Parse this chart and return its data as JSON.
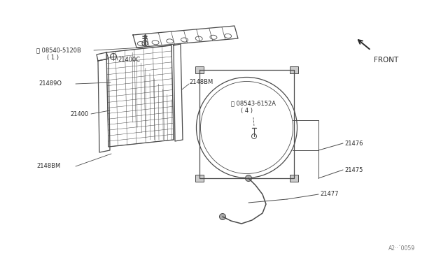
{
  "bg_color": "#ffffff",
  "line_color": "#4a4a4a",
  "text_color": "#2a2a2a",
  "parts": {
    "screw1_label": "Ⓢ 08540-5120B",
    "screw1_sub": "( 1 )",
    "part_21400C": "21400C",
    "part_21489O": "21489O",
    "part_21400": "21400",
    "part_2148BM_right": "2148BM",
    "screw2_label": "Ⓢ 08543-6152A",
    "screw2_sub": "( 4 )",
    "part_21476": "21476",
    "part_21475": "21475",
    "part_21477": "21477",
    "part_2148BM_left": "2148BM"
  },
  "watermark": "A2··´0059",
  "front_label": "FRONT"
}
